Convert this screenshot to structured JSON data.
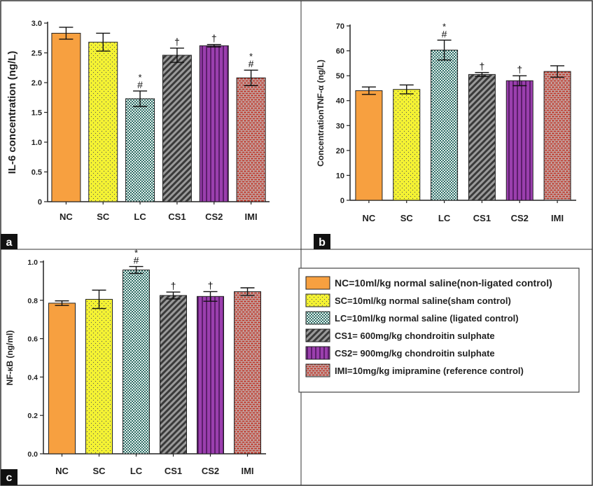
{
  "panel_labels": [
    "a",
    "b",
    "c"
  ],
  "colors": {
    "NC": "#f7a040",
    "SC": "#f4f233",
    "LC": "#3f8a82",
    "CS1": "#555555",
    "CS2": "#8a2f9a",
    "IMI": "#b84a4a",
    "panel_label_bg": "#111111",
    "border": "#333333"
  },
  "chart_data": [
    {
      "panel": "a",
      "type": "bar",
      "title": "",
      "xlabel": "",
      "ylabel": "IL-6 concentration (ng/L)",
      "categories": [
        "NC",
        "SC",
        "LC",
        "CS1",
        "CS2",
        "IMI"
      ],
      "values": [
        2.83,
        2.68,
        1.73,
        2.46,
        2.62,
        2.08
      ],
      "errors": [
        0.1,
        0.15,
        0.13,
        0.12,
        0.02,
        0.13
      ],
      "annotations": [
        [],
        [],
        [
          "*",
          "#"
        ],
        [
          "†"
        ],
        [
          "†"
        ],
        [
          "*",
          "#"
        ]
      ],
      "ylim": [
        0,
        3.0
      ],
      "yticks": [
        0,
        0.5,
        1.0,
        1.5,
        2.0,
        2.5,
        3.0
      ],
      "ytick_labels": [
        "0",
        "0.5",
        "1.0",
        "1.5",
        "2.0",
        "2.5",
        "3.0"
      ]
    },
    {
      "panel": "b",
      "type": "bar",
      "title": "",
      "xlabel": "",
      "ylabel": "ConcentrationTNF-α (ng/L)",
      "categories": [
        "NC",
        "SC",
        "LC",
        "CS1",
        "CS2",
        "IMI"
      ],
      "values": [
        44,
        44.5,
        60.3,
        50.5,
        48,
        51.7
      ],
      "errors": [
        1.5,
        1.8,
        4.0,
        0.8,
        2.0,
        2.3
      ],
      "annotations": [
        [],
        [],
        [
          "*",
          "#"
        ],
        [
          "†"
        ],
        [
          "†"
        ],
        []
      ],
      "ylim": [
        0,
        70
      ],
      "yticks": [
        0,
        10,
        20,
        30,
        40,
        50,
        60,
        70
      ],
      "ytick_labels": [
        "0",
        "10",
        "20",
        "30",
        "40",
        "50",
        "60",
        "70"
      ]
    },
    {
      "panel": "c",
      "type": "bar",
      "title": "",
      "xlabel": "",
      "ylabel": "NF-κB (ng/ml)",
      "categories": [
        "NC",
        "SC",
        "LC",
        "CS1",
        "CS2",
        "IMI"
      ],
      "values": [
        0.785,
        0.805,
        0.958,
        0.825,
        0.82,
        0.845
      ],
      "errors": [
        0.012,
        0.048,
        0.018,
        0.018,
        0.025,
        0.02
      ],
      "annotations": [
        [],
        [],
        [
          "*",
          "#"
        ],
        [
          "†"
        ],
        [
          "†"
        ],
        []
      ],
      "ylim": [
        0,
        1.0
      ],
      "yticks": [
        0,
        0.2,
        0.4,
        0.6,
        0.8,
        1.0
      ],
      "ytick_labels": [
        "0.0",
        "0.2",
        "0.4",
        "0.6",
        "0.8",
        "1.0"
      ]
    }
  ],
  "legend": [
    {
      "key": "NC",
      "text": "NC=10ml/kg normal saline(non-ligated control)"
    },
    {
      "key": "SC",
      "text": "SC=10ml/kg normal saline(sham control)"
    },
    {
      "key": "LC",
      "text": "LC=10ml/kg normal saline (ligated control)"
    },
    {
      "key": "CS1",
      "text": "CS1= 600mg/kg chondroitin sulphate"
    },
    {
      "key": "CS2",
      "text": "CS2= 900mg/kg chondroitin sulphate"
    },
    {
      "key": "IMI",
      "text": "IMI=10mg/kg imipramine (reference control)"
    }
  ]
}
